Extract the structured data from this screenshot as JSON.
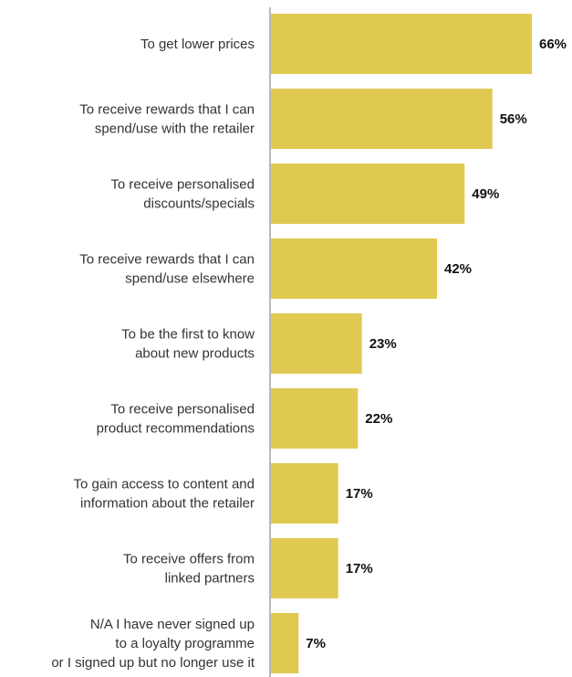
{
  "colors": {
    "bar": "#E0C951",
    "axis": "#B9B9B9",
    "text": "#333333",
    "value_text": "#111111"
  },
  "chart_data": {
    "type": "bar",
    "orientation": "horizontal",
    "categories": [
      [
        "To get lower prices"
      ],
      [
        "To receive rewards that I can",
        "spend/use with the retailer"
      ],
      [
        "To receive personalised",
        "discounts/specials"
      ],
      [
        "To receive rewards that I can",
        "spend/use elsewhere"
      ],
      [
        "To be the first to know",
        "about new products"
      ],
      [
        "To receive personalised",
        "product recommendations"
      ],
      [
        "To gain access to content and",
        "information about the retailer"
      ],
      [
        "To receive offers from",
        "linked partners"
      ],
      [
        "N/A I have never signed up",
        "to a loyalty programme",
        "or I signed up but no longer use it"
      ]
    ],
    "values": [
      66,
      56,
      49,
      42,
      23,
      22,
      17,
      17,
      7
    ],
    "value_labels": [
      "66%",
      "56%",
      "49%",
      "42%",
      "23%",
      "22%",
      "17%",
      "17%",
      "7%"
    ],
    "xlim": [
      0,
      66
    ],
    "grid": false,
    "legend": "none"
  }
}
